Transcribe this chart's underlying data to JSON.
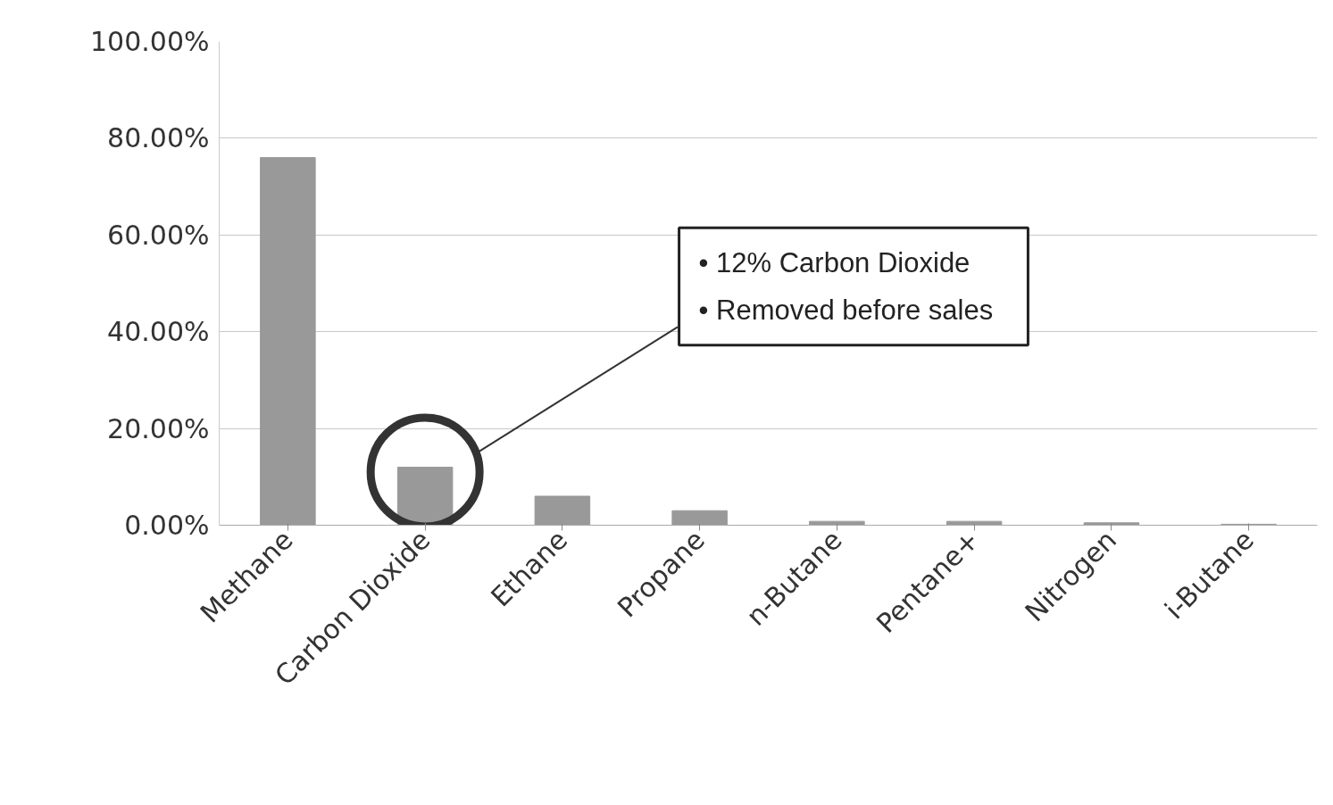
{
  "chart_data": {
    "type": "bar",
    "categories": [
      "Methane",
      "Carbon Dioxide",
      "Ethane",
      "Propane",
      "n-Butane",
      "Pentane+",
      "Nitrogen",
      "i-Butane"
    ],
    "values": [
      76,
      12,
      6,
      3,
      0.8,
      0.8,
      0.5,
      0.2
    ],
    "color": "#999999",
    "ylim": [
      0,
      100
    ],
    "yticks": [
      {
        "value": 0,
        "label": "0.00%"
      },
      {
        "value": 20,
        "label": "20.00%"
      },
      {
        "value": 40,
        "label": "40.00%"
      },
      {
        "value": 60,
        "label": "60.00%"
      },
      {
        "value": 80,
        "label": "80.00%"
      },
      {
        "value": 100,
        "label": "100.00%"
      }
    ],
    "grid": "y",
    "annotations": [
      "•   12% Carbon Dioxide\n•   Removed before sales"
    ]
  }
}
